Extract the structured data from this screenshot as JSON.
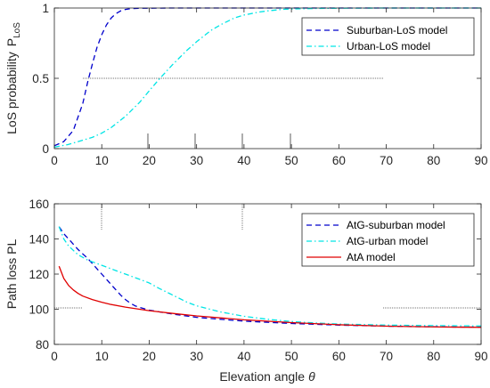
{
  "chart_data": [
    {
      "type": "line",
      "ylabel": "LoS probability",
      "ylabel_symbol": "P",
      "ylabel_subscript": "LoS",
      "xlim": [
        0,
        90
      ],
      "ylim": [
        0,
        1
      ],
      "xticks": [
        0,
        10,
        20,
        30,
        40,
        50,
        60,
        70,
        80,
        90
      ],
      "yticks": [
        0,
        0.5,
        1
      ],
      "grid": false,
      "legend_location": "top-right",
      "series": [
        {
          "name": "Suburban-LoS model",
          "color": "#0000cc",
          "dash": "dashed",
          "x": [
            0,
            2,
            4,
            6,
            7,
            8,
            9,
            10,
            11,
            12,
            13,
            14,
            15,
            16,
            18,
            20,
            25,
            30,
            90
          ],
          "y": [
            0.02,
            0.05,
            0.13,
            0.32,
            0.47,
            0.6,
            0.72,
            0.81,
            0.88,
            0.93,
            0.96,
            0.98,
            0.99,
            0.995,
            0.998,
            0.999,
            1.0,
            1.0,
            1.0
          ]
        },
        {
          "name": "Urban-LoS model",
          "color": "#00e5e5",
          "dash": "dashdot",
          "x": [
            0,
            3,
            5,
            8,
            10,
            12,
            15,
            18,
            20,
            22,
            25,
            28,
            30,
            33,
            35,
            38,
            40,
            43,
            45,
            48,
            50,
            55,
            60,
            70,
            80,
            90
          ],
          "y": [
            0.01,
            0.03,
            0.05,
            0.08,
            0.11,
            0.15,
            0.23,
            0.33,
            0.41,
            0.49,
            0.6,
            0.7,
            0.76,
            0.84,
            0.88,
            0.93,
            0.95,
            0.97,
            0.98,
            0.99,
            0.993,
            0.997,
            0.999,
            1.0,
            1.0,
            1.0
          ]
        }
      ]
    },
    {
      "type": "line",
      "xlabel": "Elevation angle",
      "xlabel_symbol": "θ",
      "ylabel": "Path loss  PL",
      "xlim": [
        0,
        90
      ],
      "ylim": [
        80,
        160
      ],
      "xticks": [
        0,
        10,
        20,
        30,
        40,
        50,
        60,
        70,
        80,
        90
      ],
      "yticks": [
        80,
        100,
        120,
        140,
        160
      ],
      "grid": false,
      "legend_location": "top-right",
      "series": [
        {
          "name": "AtG-suburban model",
          "color": "#0000cc",
          "dash": "dashed",
          "x": [
            1,
            2,
            3,
            4,
            5,
            6,
            7,
            8,
            9,
            10,
            11,
            12,
            13,
            14,
            15,
            16,
            17,
            18,
            20,
            25,
            30,
            40,
            50,
            60,
            70,
            80,
            90
          ],
          "y": [
            147,
            143,
            140,
            137,
            134,
            131.5,
            129,
            126,
            123,
            120,
            117,
            114,
            111,
            108,
            105.5,
            103.5,
            102,
            101,
            99.5,
            97.2,
            95.4,
            93.2,
            91.9,
            91.0,
            90.4,
            90.0,
            89.8
          ]
        },
        {
          "name": "AtG-urban model",
          "color": "#00e5e5",
          "dash": "dashdot",
          "x": [
            1,
            2,
            3,
            5,
            7,
            10,
            13,
            15,
            18,
            20,
            22,
            25,
            28,
            30,
            35,
            40,
            45,
            50,
            55,
            60,
            70,
            80,
            90
          ],
          "y": [
            147,
            140,
            136,
            131,
            128,
            125,
            122,
            120,
            117,
            115,
            112,
            108,
            104,
            102,
            98.5,
            96,
            94.3,
            93,
            92.2,
            91.6,
            91,
            90.7,
            90.5
          ]
        },
        {
          "name": "AtA model",
          "color": "#e00000",
          "dash": "solid",
          "x": [
            1,
            2,
            3,
            4,
            5,
            6,
            8,
            10,
            12,
            15,
            20,
            25,
            30,
            40,
            50,
            60,
            70,
            80,
            90
          ],
          "y": [
            124.5,
            117.5,
            113.5,
            111,
            109,
            107.5,
            105.5,
            104,
            102.7,
            101.2,
            99.2,
            97.6,
            96.2,
            94,
            92.4,
            91.2,
            90.4,
            89.9,
            89.7
          ]
        }
      ]
    }
  ]
}
